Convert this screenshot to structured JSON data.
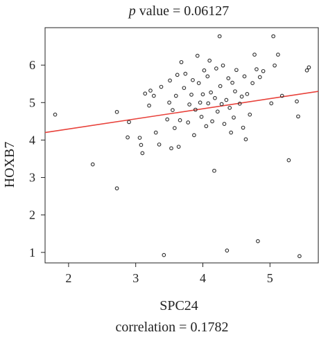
{
  "chart_data": {
    "type": "scatter",
    "title_p": "p",
    "title_rest": " value = 0.06127",
    "xlabel": "SPC24",
    "ylabel": "HOXB7",
    "footer": "correlation = 0.1782",
    "xlim": [
      1.65,
      5.72
    ],
    "ylim": [
      0.72,
      7.0
    ],
    "xticks": [
      2,
      3,
      4,
      5
    ],
    "yticks": [
      1,
      2,
      3,
      4,
      5,
      6
    ],
    "grid": false,
    "colors": {
      "point": "#2b2b2b",
      "fit": "#e8413a",
      "axis": "#222222"
    },
    "fit_line": {
      "x": [
        1.65,
        5.72
      ],
      "y": [
        4.2,
        5.3
      ]
    },
    "points": [
      {
        "x": 1.8,
        "y": 4.68
      },
      {
        "x": 2.36,
        "y": 3.35
      },
      {
        "x": 2.72,
        "y": 4.75
      },
      {
        "x": 2.72,
        "y": 2.71
      },
      {
        "x": 2.88,
        "y": 4.07
      },
      {
        "x": 2.9,
        "y": 4.48
      },
      {
        "x": 3.06,
        "y": 4.06
      },
      {
        "x": 3.08,
        "y": 3.87
      },
      {
        "x": 3.1,
        "y": 3.65
      },
      {
        "x": 3.14,
        "y": 5.24
      },
      {
        "x": 3.2,
        "y": 4.92
      },
      {
        "x": 3.22,
        "y": 5.32
      },
      {
        "x": 3.27,
        "y": 5.18
      },
      {
        "x": 3.3,
        "y": 4.2
      },
      {
        "x": 3.35,
        "y": 3.88
      },
      {
        "x": 3.38,
        "y": 5.42
      },
      {
        "x": 3.42,
        "y": 0.93
      },
      {
        "x": 3.47,
        "y": 4.55
      },
      {
        "x": 3.5,
        "y": 5.0
      },
      {
        "x": 3.51,
        "y": 5.59
      },
      {
        "x": 3.53,
        "y": 3.78
      },
      {
        "x": 3.55,
        "y": 4.8
      },
      {
        "x": 3.58,
        "y": 4.32
      },
      {
        "x": 3.6,
        "y": 5.18
      },
      {
        "x": 3.62,
        "y": 5.74
      },
      {
        "x": 3.64,
        "y": 3.82
      },
      {
        "x": 3.66,
        "y": 4.53
      },
      {
        "x": 3.68,
        "y": 6.08
      },
      {
        "x": 3.72,
        "y": 5.39
      },
      {
        "x": 3.74,
        "y": 5.77
      },
      {
        "x": 3.78,
        "y": 4.47
      },
      {
        "x": 3.8,
        "y": 4.95
      },
      {
        "x": 3.83,
        "y": 5.21
      },
      {
        "x": 3.85,
        "y": 5.6
      },
      {
        "x": 3.87,
        "y": 4.13
      },
      {
        "x": 3.89,
        "y": 4.81
      },
      {
        "x": 3.92,
        "y": 6.25
      },
      {
        "x": 3.94,
        "y": 5.52
      },
      {
        "x": 3.96,
        "y": 5.0
      },
      {
        "x": 3.98,
        "y": 4.62
      },
      {
        "x": 4.0,
        "y": 5.22
      },
      {
        "x": 4.02,
        "y": 5.86
      },
      {
        "x": 4.05,
        "y": 4.37
      },
      {
        "x": 4.07,
        "y": 5.7
      },
      {
        "x": 4.08,
        "y": 4.98
      },
      {
        "x": 4.1,
        "y": 6.12
      },
      {
        "x": 4.12,
        "y": 5.27
      },
      {
        "x": 4.14,
        "y": 4.5
      },
      {
        "x": 4.17,
        "y": 3.18
      },
      {
        "x": 4.18,
        "y": 5.12
      },
      {
        "x": 4.2,
        "y": 5.91
      },
      {
        "x": 4.22,
        "y": 4.76
      },
      {
        "x": 4.25,
        "y": 6.77
      },
      {
        "x": 4.26,
        "y": 5.44
      },
      {
        "x": 4.28,
        "y": 4.96
      },
      {
        "x": 4.3,
        "y": 5.99
      },
      {
        "x": 4.32,
        "y": 4.43
      },
      {
        "x": 4.35,
        "y": 5.07
      },
      {
        "x": 4.36,
        "y": 1.05
      },
      {
        "x": 4.38,
        "y": 5.65
      },
      {
        "x": 4.4,
        "y": 4.86
      },
      {
        "x": 4.42,
        "y": 4.2
      },
      {
        "x": 4.44,
        "y": 5.53
      },
      {
        "x": 4.46,
        "y": 4.6
      },
      {
        "x": 4.48,
        "y": 5.3
      },
      {
        "x": 4.5,
        "y": 5.87
      },
      {
        "x": 4.55,
        "y": 4.97
      },
      {
        "x": 4.58,
        "y": 5.16
      },
      {
        "x": 4.6,
        "y": 4.33
      },
      {
        "x": 4.62,
        "y": 5.7
      },
      {
        "x": 4.64,
        "y": 4.02
      },
      {
        "x": 4.66,
        "y": 5.23
      },
      {
        "x": 4.7,
        "y": 4.68
      },
      {
        "x": 4.74,
        "y": 5.52
      },
      {
        "x": 4.77,
        "y": 6.28
      },
      {
        "x": 4.8,
        "y": 5.89
      },
      {
        "x": 4.82,
        "y": 1.3
      },
      {
        "x": 4.85,
        "y": 5.68
      },
      {
        "x": 4.9,
        "y": 5.84
      },
      {
        "x": 5.02,
        "y": 4.98
      },
      {
        "x": 5.05,
        "y": 6.77
      },
      {
        "x": 5.07,
        "y": 5.99
      },
      {
        "x": 5.12,
        "y": 6.28
      },
      {
        "x": 5.18,
        "y": 5.18
      },
      {
        "x": 5.28,
        "y": 3.46
      },
      {
        "x": 5.4,
        "y": 5.03
      },
      {
        "x": 5.42,
        "y": 4.63
      },
      {
        "x": 5.44,
        "y": 0.9
      },
      {
        "x": 5.55,
        "y": 5.86
      },
      {
        "x": 5.58,
        "y": 5.94
      }
    ]
  }
}
